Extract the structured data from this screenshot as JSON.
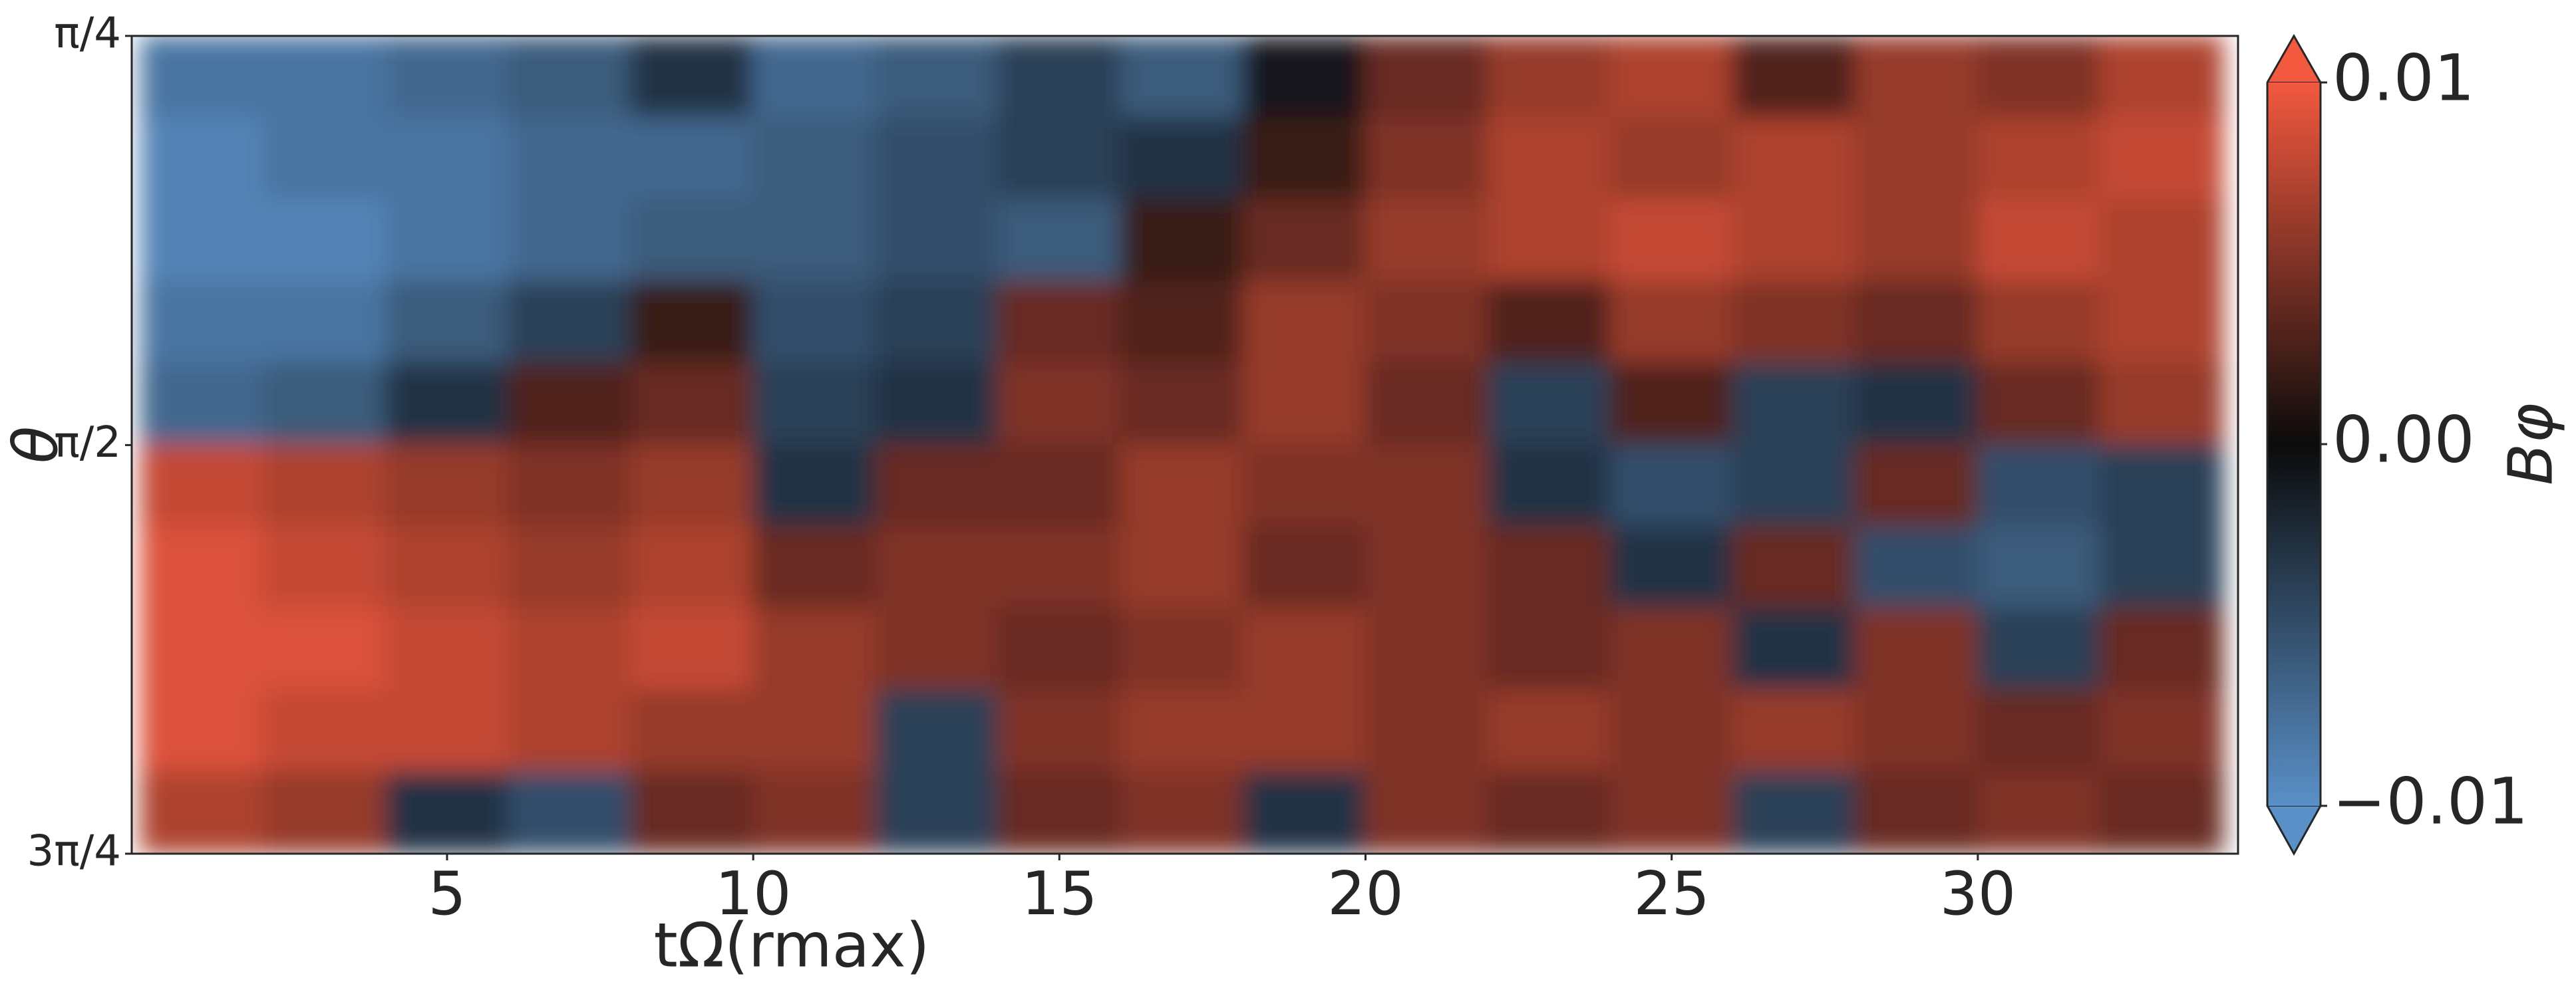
{
  "chart_data": {
    "type": "heatmap",
    "x_label": "tΩ(rmax)",
    "y_label": "θ",
    "colorbar_label": "Bφ",
    "xlim": [
      -0.15,
      34.25
    ],
    "xticks": [
      5,
      10,
      15,
      20,
      25,
      30
    ],
    "ylim": [
      2.356,
      0.785
    ],
    "yticks": [
      {
        "value": 0.785,
        "label": "π/4"
      },
      {
        "value": 1.571,
        "label": "π/2"
      },
      {
        "value": 2.356,
        "label": "3π/4"
      }
    ],
    "clim": [
      -0.01,
      0.01
    ],
    "cticks": [
      {
        "value": -0.01,
        "label": "−0.01"
      },
      {
        "value": 0,
        "label": "0.00"
      },
      0.01
    ],
    "colormap": [
      "#5a90c8",
      "#0b0b0b",
      "#f2593f"
    ],
    "x": [
      1,
      3,
      5,
      7,
      9,
      11,
      13,
      15,
      17,
      19,
      21,
      23,
      25,
      27,
      29,
      31,
      33
    ],
    "y": [
      0.864,
      1.021,
      1.178,
      1.335,
      1.492,
      1.649,
      1.806,
      1.963,
      2.12,
      2.277
    ],
    "z": [
      [
        -0.008,
        -0.008,
        -0.007,
        -0.006,
        -0.003,
        -0.007,
        -0.006,
        -0.004,
        -0.006,
        -0.001,
        0.004,
        0.006,
        0.007,
        0.003,
        0.006,
        0.005,
        0.007
      ],
      [
        -0.009,
        -0.008,
        -0.008,
        -0.007,
        -0.007,
        -0.006,
        -0.005,
        -0.004,
        -0.003,
        0.002,
        0.005,
        0.007,
        0.006,
        0.007,
        0.006,
        0.007,
        0.008
      ],
      [
        -0.009,
        -0.009,
        -0.008,
        -0.007,
        -0.006,
        -0.006,
        -0.005,
        -0.006,
        0.002,
        0.004,
        0.006,
        0.007,
        0.008,
        0.007,
        0.006,
        0.008,
        0.007
      ],
      [
        -0.008,
        -0.008,
        -0.006,
        -0.004,
        0.002,
        -0.005,
        -0.004,
        0.004,
        0.003,
        0.006,
        0.005,
        0.003,
        0.006,
        0.005,
        0.004,
        0.006,
        0.007
      ],
      [
        -0.007,
        -0.006,
        -0.003,
        0.003,
        0.004,
        -0.004,
        -0.003,
        0.005,
        0.004,
        0.006,
        0.004,
        -0.004,
        0.003,
        -0.004,
        -0.003,
        0.004,
        0.006
      ],
      [
        0.008,
        0.007,
        0.006,
        0.005,
        0.006,
        -0.003,
        0.004,
        0.004,
        0.006,
        0.005,
        0.005,
        -0.003,
        -0.005,
        -0.004,
        0.004,
        -0.005,
        -0.004
      ],
      [
        0.009,
        0.008,
        0.007,
        0.006,
        0.007,
        0.004,
        0.005,
        0.005,
        0.006,
        0.004,
        0.005,
        0.004,
        -0.003,
        0.004,
        -0.005,
        -0.006,
        -0.004
      ],
      [
        0.009,
        0.009,
        0.008,
        0.007,
        0.008,
        0.006,
        0.005,
        0.004,
        0.005,
        0.006,
        0.005,
        0.004,
        0.005,
        -0.003,
        0.005,
        -0.004,
        0.004
      ],
      [
        0.009,
        0.008,
        0.008,
        0.007,
        0.006,
        0.006,
        -0.004,
        0.005,
        0.006,
        0.006,
        0.005,
        0.006,
        0.005,
        0.006,
        0.005,
        0.004,
        0.005
      ],
      [
        0.007,
        0.006,
        -0.003,
        -0.005,
        0.004,
        0.005,
        -0.004,
        0.004,
        0.005,
        -0.003,
        0.005,
        0.004,
        0.005,
        -0.004,
        0.004,
        0.005,
        0.004
      ]
    ]
  }
}
